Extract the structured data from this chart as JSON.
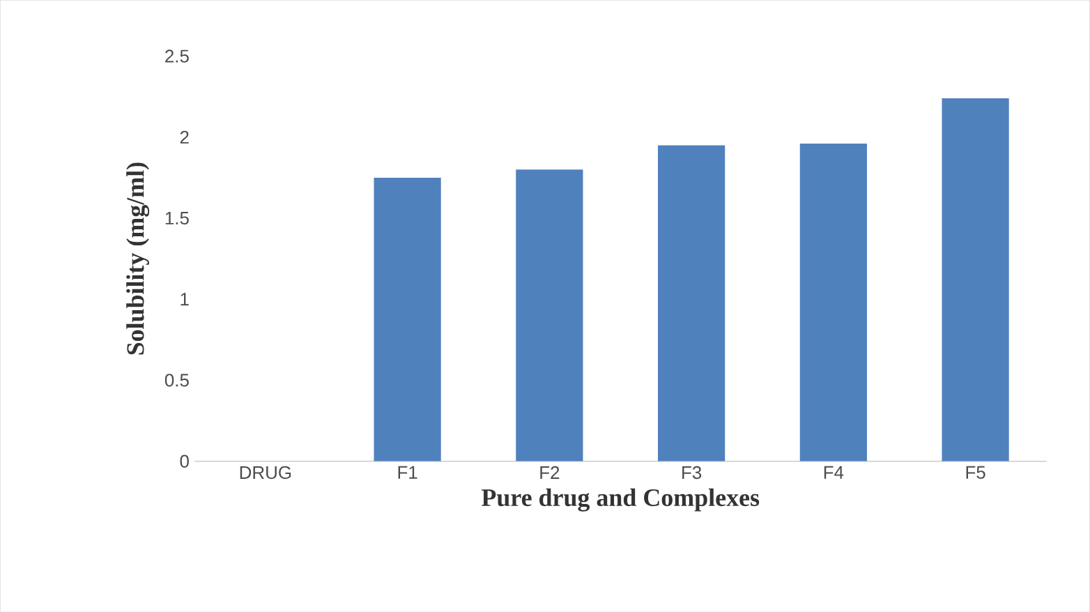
{
  "chart_data": {
    "type": "bar",
    "xlabel": "Pure drug and Complexes",
    "ylabel": "Solubility  (mg/ml)",
    "categories": [
      "DRUG",
      "F1",
      "F2",
      "F3",
      "F4",
      "F5"
    ],
    "values": [
      0,
      1.75,
      1.8,
      1.95,
      1.96,
      2.24
    ],
    "color": "#4f81bd",
    "ylim": [
      0,
      2.5
    ],
    "yticks": [
      0,
      0.5,
      1,
      1.5,
      2,
      2.5
    ]
  }
}
